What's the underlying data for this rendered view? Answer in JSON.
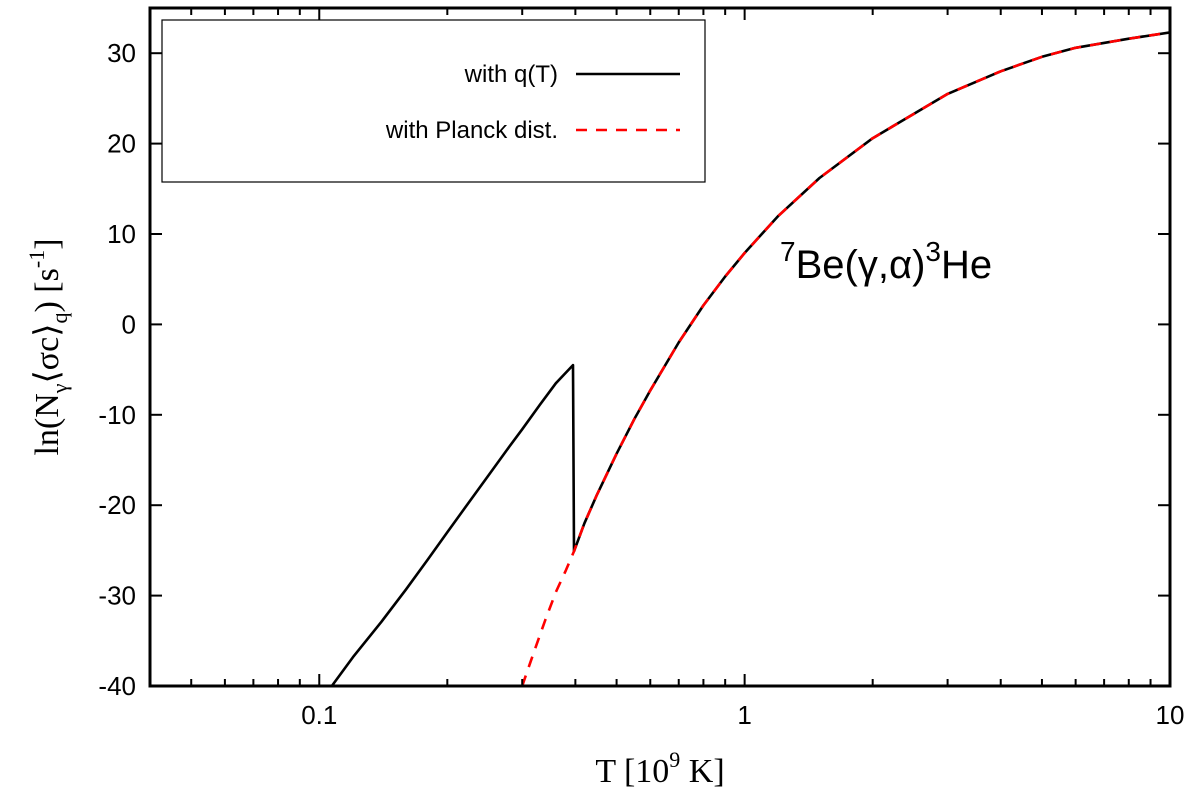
{
  "chart_data": {
    "type": "line",
    "x_scale": "log",
    "xlim": [
      0.04,
      10
    ],
    "ylim": [
      -40,
      35
    ],
    "xlabel": {
      "base": "T [10",
      "sup": "9",
      "rest": " K]"
    },
    "ylabel": {
      "p1": "ln(N",
      "s1": "γ",
      "p2": "⟨σc⟩",
      "s2": "q",
      "p3": ") [s",
      "s3": "-1",
      "p4": "]"
    },
    "x_ticks": [
      {
        "value": 0.1,
        "label": "0.1"
      },
      {
        "value": 1,
        "label": "1"
      },
      {
        "value": 10,
        "label": "10"
      }
    ],
    "y_ticks": [
      {
        "value": -40,
        "label": "-40"
      },
      {
        "value": -30,
        "label": "-30"
      },
      {
        "value": -20,
        "label": "-20"
      },
      {
        "value": -10,
        "label": "-10"
      },
      {
        "value": 0,
        "label": "0"
      },
      {
        "value": 10,
        "label": "10"
      },
      {
        "value": 20,
        "label": "20"
      },
      {
        "value": 30,
        "label": "30"
      }
    ],
    "annotation": {
      "sup1": "7",
      "t1": "Be(γ,α)",
      "sup2": "3",
      "t2": "He"
    },
    "series": [
      {
        "name": "with q(T)",
        "color": "#000000",
        "dash": "solid",
        "points": [
          [
            0.107,
            -40
          ],
          [
            0.12,
            -36.8
          ],
          [
            0.14,
            -32.9
          ],
          [
            0.16,
            -29.3
          ],
          [
            0.18,
            -26.0
          ],
          [
            0.2,
            -23.0
          ],
          [
            0.22,
            -20.3
          ],
          [
            0.25,
            -16.7
          ],
          [
            0.28,
            -13.5
          ],
          [
            0.3,
            -11.6
          ],
          [
            0.33,
            -8.9
          ],
          [
            0.36,
            -6.5
          ],
          [
            0.395,
            -4.5
          ],
          [
            0.397,
            -25.1
          ],
          [
            0.42,
            -22.0
          ],
          [
            0.45,
            -18.8
          ],
          [
            0.5,
            -14.3
          ],
          [
            0.55,
            -10.5
          ],
          [
            0.6,
            -7.3
          ],
          [
            0.7,
            -2.0
          ],
          [
            0.8,
            2.1
          ],
          [
            0.9,
            5.3
          ],
          [
            1.0,
            7.9
          ],
          [
            1.2,
            12.0
          ],
          [
            1.5,
            16.2
          ],
          [
            2.0,
            20.6
          ],
          [
            3.0,
            25.5
          ],
          [
            4.0,
            28.0
          ],
          [
            5.0,
            29.6
          ],
          [
            6.0,
            30.6
          ],
          [
            8.0,
            31.6
          ],
          [
            10.0,
            32.3
          ]
        ]
      },
      {
        "name": "with Planck dist.",
        "color": "#ff0000",
        "dash": "dashed",
        "points": [
          [
            0.3,
            -40
          ],
          [
            0.32,
            -36.2
          ],
          [
            0.34,
            -32.7
          ],
          [
            0.36,
            -29.6
          ],
          [
            0.38,
            -27.2
          ],
          [
            0.397,
            -25.1
          ],
          [
            0.42,
            -22.0
          ],
          [
            0.45,
            -18.8
          ],
          [
            0.5,
            -14.3
          ],
          [
            0.55,
            -10.5
          ],
          [
            0.6,
            -7.3
          ],
          [
            0.7,
            -2.0
          ],
          [
            0.8,
            2.1
          ],
          [
            0.9,
            5.3
          ],
          [
            1.0,
            7.9
          ],
          [
            1.2,
            12.0
          ],
          [
            1.5,
            16.2
          ],
          [
            2.0,
            20.6
          ],
          [
            3.0,
            25.5
          ],
          [
            4.0,
            28.0
          ],
          [
            5.0,
            29.6
          ],
          [
            6.0,
            30.6
          ],
          [
            8.0,
            31.6
          ],
          [
            10.0,
            32.3
          ]
        ]
      }
    ]
  }
}
